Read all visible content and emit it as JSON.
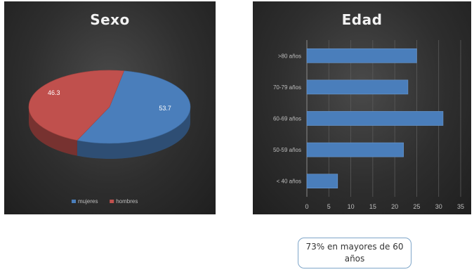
{
  "chart_data": [
    {
      "type": "pie",
      "title": "Sexo",
      "slices": [
        {
          "label": "mujeres",
          "value": 53.7,
          "color": "#4a7ebb"
        },
        {
          "label": "hombres",
          "value": 46.3,
          "color": "#c0504d"
        }
      ],
      "data_labels": [
        "53.7",
        "46.3"
      ],
      "legend_position": "bottom",
      "style": "3d"
    },
    {
      "type": "bar",
      "orientation": "horizontal",
      "title": "Edad",
      "categories": [
        ">80 años",
        "70-79 años",
        "60-69 años",
        "50-59 años",
        "< 40 años"
      ],
      "values": [
        25,
        23,
        31,
        22,
        7
      ],
      "xlim": [
        0,
        35
      ],
      "xticks": [
        0,
        5,
        10,
        15,
        20,
        25,
        30,
        35
      ],
      "grid": true,
      "color": "#4a7ebb"
    }
  ],
  "note": {
    "line1": "73% en mayores de 60",
    "line2": "años"
  }
}
